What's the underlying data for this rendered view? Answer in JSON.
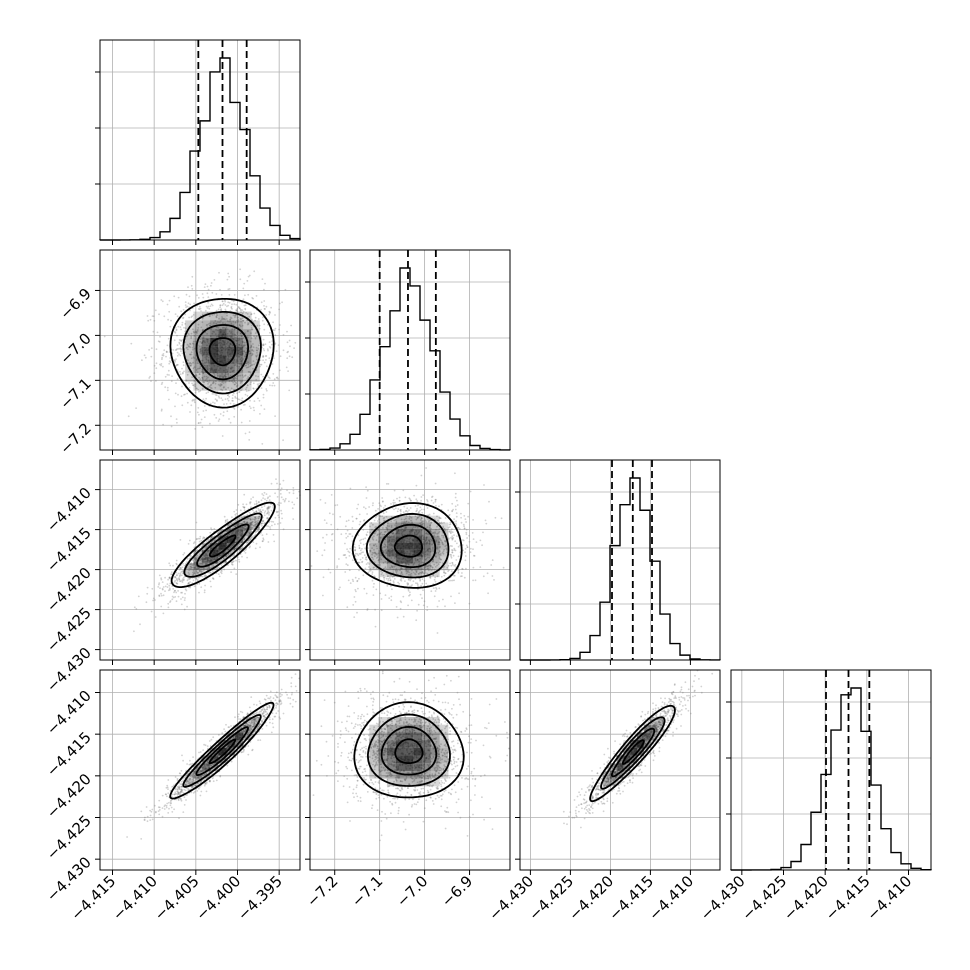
{
  "chart_data": {
    "type": "scatter",
    "description_kind": "corner",
    "grid": true,
    "parameters": [
      {
        "mean": -4.4018,
        "sigma": 0.0028,
        "range": [
          -4.4165,
          -4.3925
        ],
        "ticks": [
          -4.415,
          -4.41,
          -4.405,
          -4.4,
          -4.395
        ],
        "tick_labels": [
          "−4.415",
          "−4.410",
          "−4.405",
          "−4.400",
          "−4.395"
        ],
        "quantiles": [
          -4.4047,
          -4.4018,
          -4.3989
        ]
      },
      {
        "mean": -7.035,
        "sigma": 0.055,
        "range": [
          -7.255,
          -6.81
        ],
        "ticks": [
          -7.2,
          -7.1,
          -7.0,
          -6.9
        ],
        "tick_labels": [
          "−7.2",
          "−7.1",
          "−7.0",
          "−6.9"
        ],
        "quantiles": [
          -7.1,
          -7.037,
          -6.975
        ]
      },
      {
        "mean": -4.4171,
        "sigma": 0.0024,
        "range": [
          -4.4313,
          -4.4063
        ],
        "ticks": [
          -4.43,
          -4.425,
          -4.42,
          -4.415,
          -4.41
        ],
        "tick_labels": [
          "−4.430",
          "−4.425",
          "−4.420",
          "−4.415",
          "−4.410"
        ],
        "quantiles": [
          -4.4198,
          -4.4172,
          -4.4148
        ]
      },
      {
        "mean": -4.4171,
        "sigma": 0.0026,
        "range": [
          -4.4313,
          -4.4073
        ],
        "ticks": [
          -4.43,
          -4.425,
          -4.42,
          -4.415,
          -4.41
        ],
        "tick_labels": [
          "−4.430",
          "−4.425",
          "−4.420",
          "−4.415",
          "−4.410"
        ],
        "quantiles": [
          -4.4199,
          -4.4172,
          -4.4147
        ]
      }
    ],
    "correlations": [
      [
        0,
        2,
        0.88
      ],
      [
        0,
        3,
        0.95
      ],
      [
        2,
        3,
        0.93
      ],
      [
        0,
        1,
        0.0
      ],
      [
        1,
        2,
        0.0
      ],
      [
        1,
        3,
        0.0
      ]
    ],
    "histogram": {
      "bins": 20,
      "y_ticks_per_panel": 3
    },
    "contour_levels_sigma": [
      0.5,
      1.0,
      1.5,
      2.0
    ]
  },
  "colors": {
    "scatter": "#7f7f7f",
    "density": "#000000",
    "grid": "#b0b0b0"
  }
}
